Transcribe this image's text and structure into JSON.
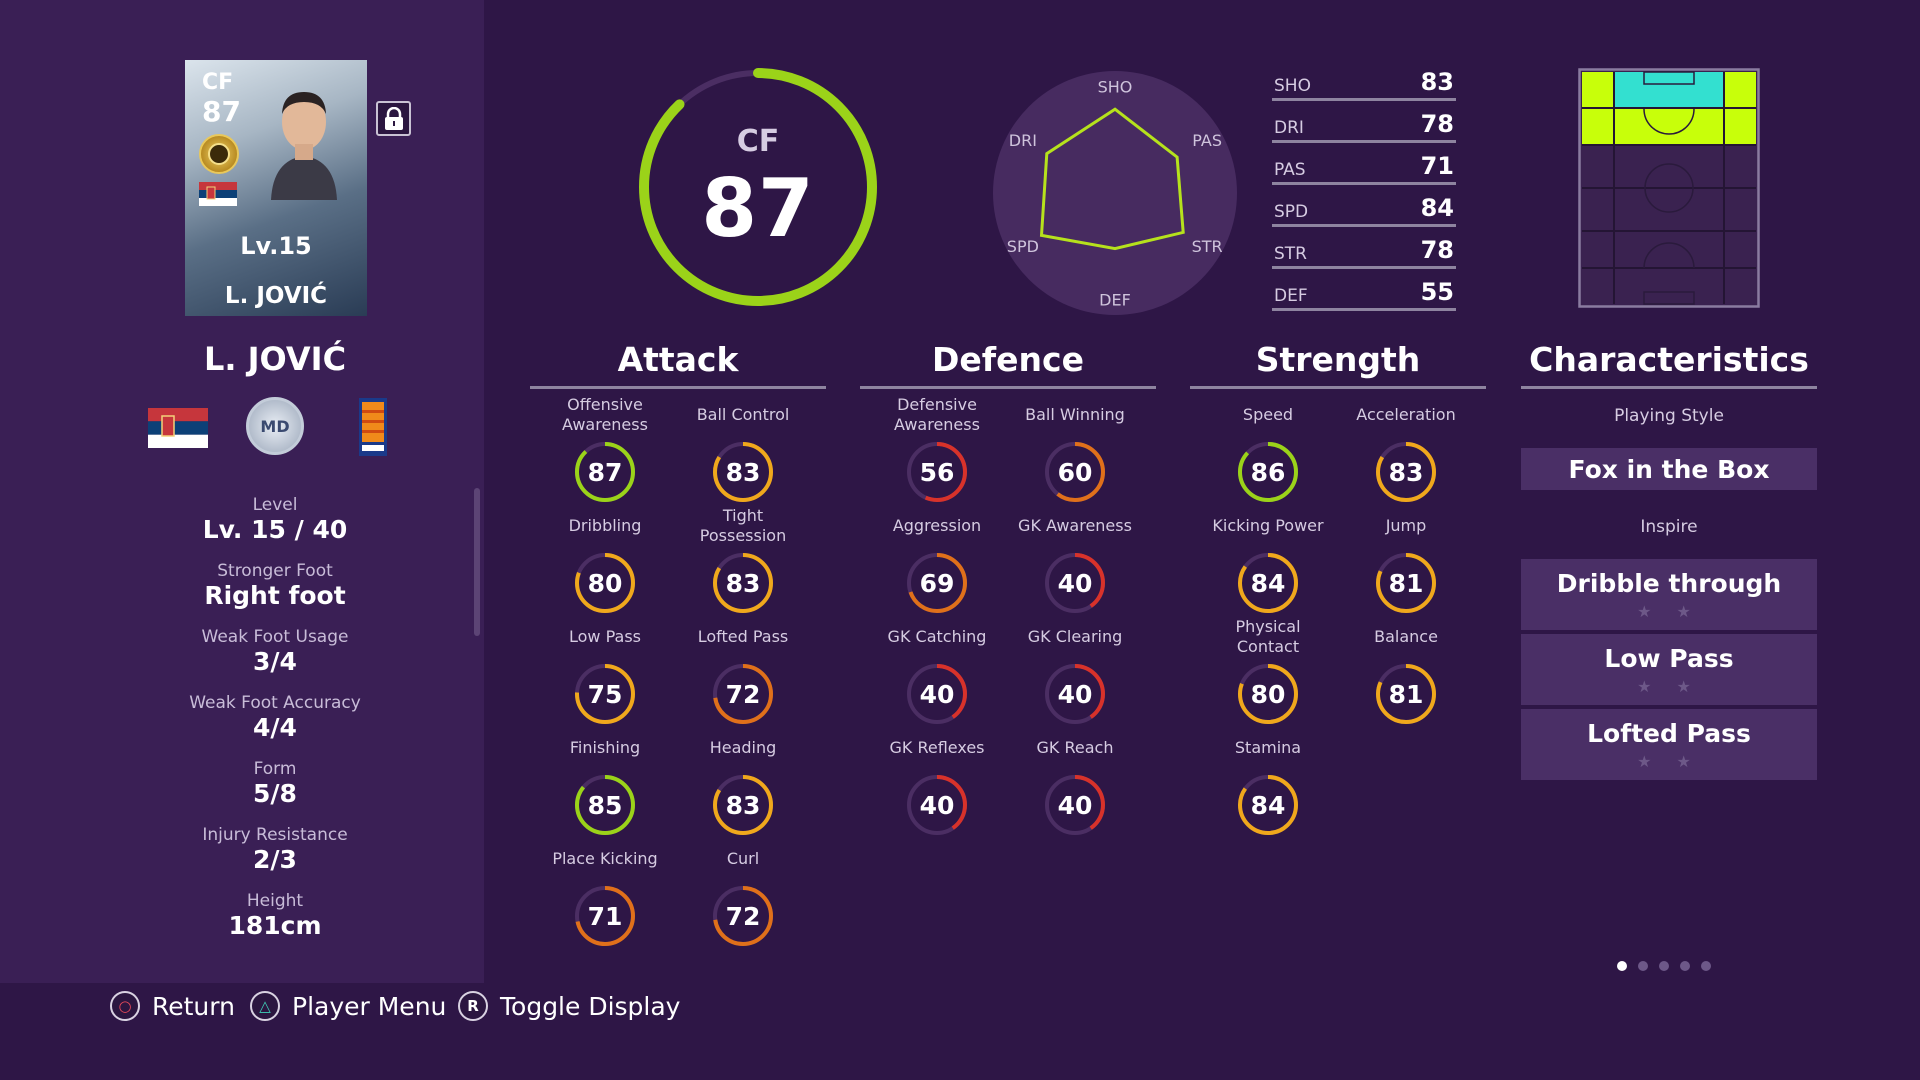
{
  "card": {
    "position": "CF",
    "overall": "87",
    "level": "Lv.15",
    "name": "L. JOVIĆ"
  },
  "player_name": "L. JOVIĆ",
  "club_badge_text": "MD",
  "info": [
    {
      "label": "Level",
      "value": "Lv. 15 / 40"
    },
    {
      "label": "Stronger Foot",
      "value": "Right foot"
    },
    {
      "label": "Weak Foot Usage",
      "value": "3/4"
    },
    {
      "label": "Weak Foot Accuracy",
      "value": "4/4"
    },
    {
      "label": "Form",
      "value": "5/8"
    },
    {
      "label": "Injury Resistance",
      "value": "2/3"
    },
    {
      "label": "Height",
      "value": "181cm"
    }
  ],
  "overall_ring": {
    "position": "CF",
    "value": "87",
    "rating": 87
  },
  "radar": {
    "axes": [
      "SHO",
      "PAS",
      "STR",
      "DEF",
      "SPD",
      "DRI"
    ],
    "values": [
      83,
      71,
      78,
      55,
      84,
      78
    ]
  },
  "stats": [
    {
      "label": "SHO",
      "value": "83"
    },
    {
      "label": "DRI",
      "value": "78"
    },
    {
      "label": "PAS",
      "value": "71"
    },
    {
      "label": "SPD",
      "value": "84"
    },
    {
      "label": "STR",
      "value": "78"
    },
    {
      "label": "DEF",
      "value": "55"
    }
  ],
  "sections": {
    "attack": "Attack",
    "defence": "Defence",
    "strength": "Strength",
    "characteristics": "Characteristics"
  },
  "attack": [
    {
      "label": "Offensive\nAwareness",
      "value": "87"
    },
    {
      "label": "Ball Control",
      "value": "83"
    },
    {
      "label": "Dribbling",
      "value": "80"
    },
    {
      "label": "Tight\nPossession",
      "value": "83"
    },
    {
      "label": "Low Pass",
      "value": "75"
    },
    {
      "label": "Lofted Pass",
      "value": "72"
    },
    {
      "label": "Finishing",
      "value": "85"
    },
    {
      "label": "Heading",
      "value": "83"
    },
    {
      "label": "Place Kicking",
      "value": "71"
    },
    {
      "label": "Curl",
      "value": "72"
    }
  ],
  "defence": [
    {
      "label": "Defensive\nAwareness",
      "value": "56"
    },
    {
      "label": "Ball Winning",
      "value": "60"
    },
    {
      "label": "Aggression",
      "value": "69"
    },
    {
      "label": "GK Awareness",
      "value": "40"
    },
    {
      "label": "GK Catching",
      "value": "40"
    },
    {
      "label": "GK Clearing",
      "value": "40"
    },
    {
      "label": "GK Reflexes",
      "value": "40"
    },
    {
      "label": "GK Reach",
      "value": "40"
    }
  ],
  "strength": [
    {
      "label": "Speed",
      "value": "86"
    },
    {
      "label": "Acceleration",
      "value": "83"
    },
    {
      "label": "Kicking Power",
      "value": "84"
    },
    {
      "label": "Jump",
      "value": "81"
    },
    {
      "label": "Physical\nContact",
      "value": "80"
    },
    {
      "label": "Balance",
      "value": "81"
    },
    {
      "label": "Stamina",
      "value": "84"
    }
  ],
  "characteristics": {
    "playing_style_label": "Playing Style",
    "playing_style": "Fox in the Box",
    "inspire_label": "Inspire",
    "inspire": [
      "Dribble through",
      "Low Pass",
      "Lofted Pass"
    ],
    "star_glyph": "★ ★"
  },
  "prompts": [
    {
      "icon": "○",
      "label": "Return"
    },
    {
      "icon": "△",
      "label": "Player Menu"
    },
    {
      "icon": "R",
      "label": "Toggle Display"
    }
  ],
  "page_dots": {
    "count": 5,
    "active": 0
  },
  "colors": {
    "high": "#9bd319",
    "mid": "#f0a81c",
    "mid_low": "#e0701a",
    "low": "#d8322a",
    "track": "#4b2e63",
    "pitch_highlight": "#c8ff0a",
    "pitch_mid": "#33e0d0"
  }
}
